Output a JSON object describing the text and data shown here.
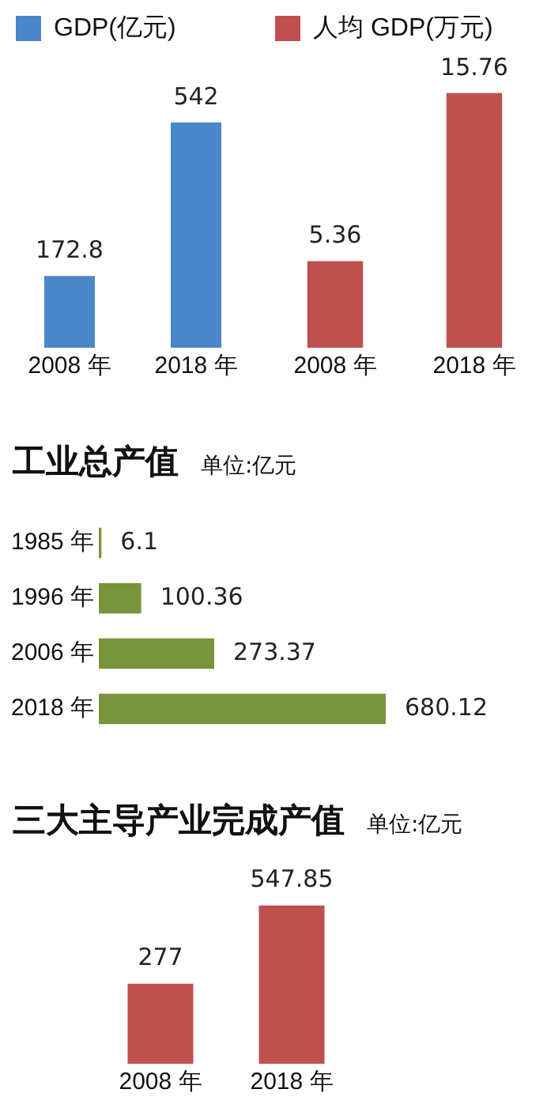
{
  "chart_data": [
    {
      "type": "bar",
      "categories": [
        "2008 年",
        "2018 年"
      ],
      "series": [
        {
          "name": "GDP(亿元)",
          "color": "#4a86c8",
          "values": [
            172.8,
            542
          ]
        }
      ],
      "data_labels": true,
      "legend": "top",
      "tick_labels": "x",
      "grid": false
    },
    {
      "type": "bar",
      "categories": [
        "2008 年",
        "2018 年"
      ],
      "series": [
        {
          "name": "人均 GDP(万元)",
          "color": "#c0504d",
          "values": [
            5.36,
            15.76
          ]
        }
      ],
      "data_labels": true,
      "legend": "top",
      "tick_labels": "x",
      "grid": false
    },
    {
      "type": "bar",
      "title": "工业总产值",
      "subtitle": "单位:亿元",
      "orientation": "horizontal",
      "categories": [
        "1985 年",
        "1996 年",
        "2006 年",
        "2018 年"
      ],
      "values": [
        6.1,
        100.36,
        273.37,
        680.12
      ],
      "color": "#77933c",
      "data_labels": true,
      "tick_labels": "y",
      "grid": false
    },
    {
      "type": "bar",
      "title": "三大主导产业完成产值",
      "subtitle": "单位:亿元",
      "categories": [
        "2008 年",
        "2018 年"
      ],
      "values": [
        277,
        547.85
      ],
      "color": "#c0504d",
      "data_labels": true,
      "tick_labels": "x",
      "grid": false
    }
  ]
}
